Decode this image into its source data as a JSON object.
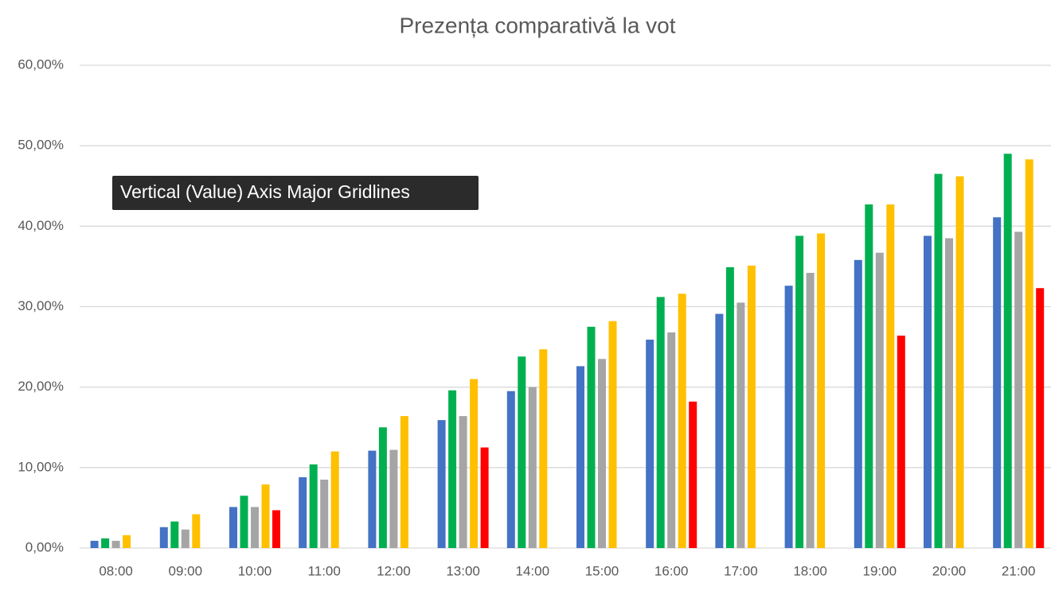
{
  "chart_data": {
    "type": "bar",
    "title": "Prezența comparativă la vot",
    "categories": [
      "08:00",
      "09:00",
      "10:00",
      "11:00",
      "12:00",
      "13:00",
      "14:00",
      "15:00",
      "16:00",
      "17:00",
      "18:00",
      "19:00",
      "20:00",
      "21:00"
    ],
    "series": [
      {
        "color": "#4472c4",
        "values": [
          0.9,
          2.6,
          5.1,
          8.8,
          12.1,
          15.9,
          19.5,
          22.6,
          25.9,
          29.1,
          32.6,
          35.8,
          38.8,
          41.1
        ]
      },
      {
        "color": "#00b050",
        "values": [
          1.2,
          3.3,
          6.5,
          10.4,
          15.0,
          19.6,
          23.8,
          27.5,
          31.2,
          34.9,
          38.8,
          42.7,
          46.5,
          49.0
        ]
      },
      {
        "color": "#a5a5a5",
        "values": [
          0.9,
          2.3,
          5.1,
          8.5,
          12.2,
          16.4,
          20.0,
          23.5,
          26.8,
          30.5,
          34.2,
          36.7,
          38.5,
          39.3
        ]
      },
      {
        "color": "#ffc000",
        "values": [
          1.6,
          4.2,
          7.9,
          12.0,
          16.4,
          21.0,
          24.7,
          28.2,
          31.6,
          35.1,
          39.1,
          42.7,
          46.2,
          48.3
        ]
      },
      {
        "color": "#ff0000",
        "values": [
          null,
          null,
          4.7,
          null,
          null,
          12.5,
          null,
          null,
          18.2,
          null,
          null,
          26.4,
          null,
          32.3
        ]
      }
    ],
    "ylim": [
      0,
      60
    ],
    "yticks": [
      {
        "value": 0,
        "label": "0,00%"
      },
      {
        "value": 10,
        "label": "10,00%"
      },
      {
        "value": 20,
        "label": "20,00%"
      },
      {
        "value": 30,
        "label": "30,00%"
      },
      {
        "value": 40,
        "label": "40,00%"
      },
      {
        "value": 50,
        "label": "50,00%"
      },
      {
        "value": 60,
        "label": "60,00%"
      }
    ],
    "grid": true
  },
  "tooltip": "Vertical (Value) Axis Major Gridlines"
}
